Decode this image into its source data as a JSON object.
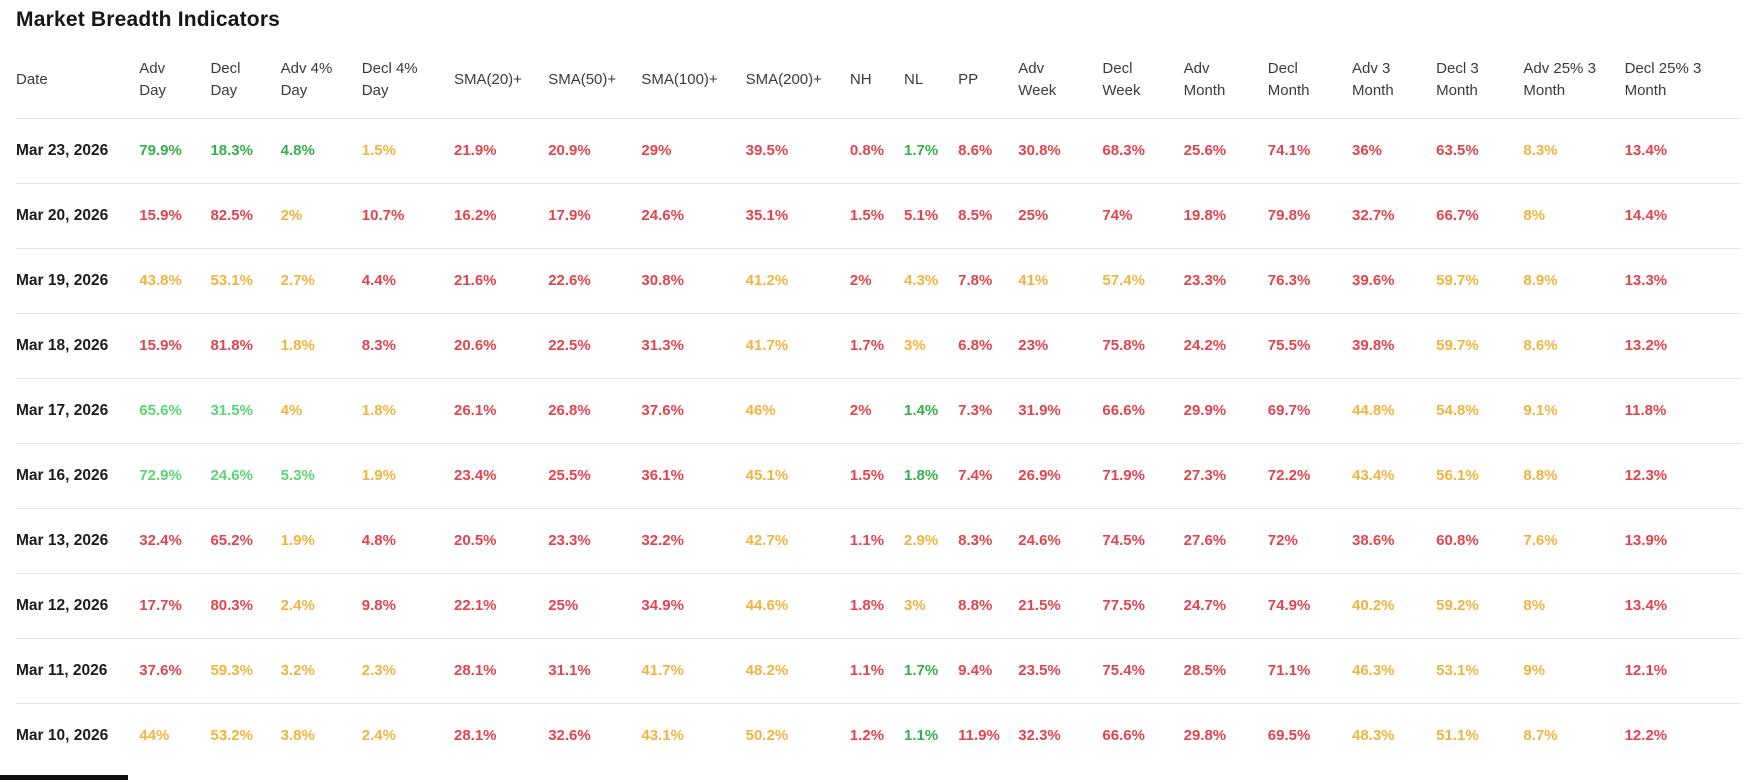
{
  "page": {
    "title": "Market Breadth Indicators"
  },
  "colors": {
    "green": "#33b04a",
    "light_green": "#5ad573",
    "yellow": "#f0b43e",
    "red": "#e2444d",
    "date_text": "#1b1b1b",
    "header_text": "#3a3a3a",
    "divider": "#e4e4e4"
  },
  "table": {
    "columns": [
      {
        "id": "date",
        "label": [
          "Date"
        ]
      },
      {
        "id": "adv-day",
        "label": [
          "Adv",
          "Day"
        ]
      },
      {
        "id": "decl-day",
        "label": [
          "Decl",
          "Day"
        ]
      },
      {
        "id": "adv-4pct-day",
        "label": [
          "Adv 4%",
          "Day"
        ]
      },
      {
        "id": "decl-4pct-day",
        "label": [
          "Decl 4%",
          "Day"
        ]
      },
      {
        "id": "sma-20",
        "label": [
          "SMA(20)+"
        ]
      },
      {
        "id": "sma-50",
        "label": [
          "SMA(50)+"
        ]
      },
      {
        "id": "sma-100",
        "label": [
          "SMA(100)+"
        ]
      },
      {
        "id": "sma-200",
        "label": [
          "SMA(200)+"
        ]
      },
      {
        "id": "nh",
        "label": [
          "NH"
        ]
      },
      {
        "id": "nl",
        "label": [
          "NL"
        ]
      },
      {
        "id": "pp",
        "label": [
          "PP"
        ]
      },
      {
        "id": "adv-week",
        "label": [
          "Adv",
          "Week"
        ]
      },
      {
        "id": "decl-week",
        "label": [
          "Decl",
          "Week"
        ]
      },
      {
        "id": "adv-month",
        "label": [
          "Adv",
          "Month"
        ]
      },
      {
        "id": "decl-month",
        "label": [
          "Decl",
          "Month"
        ]
      },
      {
        "id": "adv-3-month",
        "label": [
          "Adv 3",
          "Month"
        ]
      },
      {
        "id": "decl-3-month",
        "label": [
          "Decl 3",
          "Month"
        ]
      },
      {
        "id": "adv-25-3-month",
        "label": [
          "Adv 25% 3",
          "Month"
        ]
      },
      {
        "id": "decl-25-3-month",
        "label": [
          "Decl 25% 3",
          "Month"
        ]
      }
    ],
    "rows": [
      {
        "date": "Mar 23, 2026",
        "cells": [
          {
            "t": "79.9%",
            "c": "green"
          },
          {
            "t": "18.3%",
            "c": "green"
          },
          {
            "t": "4.8%",
            "c": "green"
          },
          {
            "t": "1.5%",
            "c": "yellow"
          },
          {
            "t": "21.9%",
            "c": "red"
          },
          {
            "t": "20.9%",
            "c": "red"
          },
          {
            "t": "29%",
            "c": "red"
          },
          {
            "t": "39.5%",
            "c": "red"
          },
          {
            "t": "0.8%",
            "c": "red"
          },
          {
            "t": "1.7%",
            "c": "green"
          },
          {
            "t": "8.6%",
            "c": "red"
          },
          {
            "t": "30.8%",
            "c": "red"
          },
          {
            "t": "68.3%",
            "c": "red"
          },
          {
            "t": "25.6%",
            "c": "red"
          },
          {
            "t": "74.1%",
            "c": "red"
          },
          {
            "t": "36%",
            "c": "red"
          },
          {
            "t": "63.5%",
            "c": "red"
          },
          {
            "t": "8.3%",
            "c": "yellow"
          },
          {
            "t": "13.4%",
            "c": "red"
          }
        ]
      },
      {
        "date": "Mar 20, 2026",
        "cells": [
          {
            "t": "15.9%",
            "c": "red"
          },
          {
            "t": "82.5%",
            "c": "red"
          },
          {
            "t": "2%",
            "c": "yellow"
          },
          {
            "t": "10.7%",
            "c": "red"
          },
          {
            "t": "16.2%",
            "c": "red"
          },
          {
            "t": "17.9%",
            "c": "red"
          },
          {
            "t": "24.6%",
            "c": "red"
          },
          {
            "t": "35.1%",
            "c": "red"
          },
          {
            "t": "1.5%",
            "c": "red"
          },
          {
            "t": "5.1%",
            "c": "red"
          },
          {
            "t": "8.5%",
            "c": "red"
          },
          {
            "t": "25%",
            "c": "red"
          },
          {
            "t": "74%",
            "c": "red"
          },
          {
            "t": "19.8%",
            "c": "red"
          },
          {
            "t": "79.8%",
            "c": "red"
          },
          {
            "t": "32.7%",
            "c": "red"
          },
          {
            "t": "66.7%",
            "c": "red"
          },
          {
            "t": "8%",
            "c": "yellow"
          },
          {
            "t": "14.4%",
            "c": "red"
          }
        ]
      },
      {
        "date": "Mar 19, 2026",
        "cells": [
          {
            "t": "43.8%",
            "c": "yellow"
          },
          {
            "t": "53.1%",
            "c": "yellow"
          },
          {
            "t": "2.7%",
            "c": "yellow"
          },
          {
            "t": "4.4%",
            "c": "red"
          },
          {
            "t": "21.6%",
            "c": "red"
          },
          {
            "t": "22.6%",
            "c": "red"
          },
          {
            "t": "30.8%",
            "c": "red"
          },
          {
            "t": "41.2%",
            "c": "yellow"
          },
          {
            "t": "2%",
            "c": "red"
          },
          {
            "t": "4.3%",
            "c": "yellow"
          },
          {
            "t": "7.8%",
            "c": "red"
          },
          {
            "t": "41%",
            "c": "yellow"
          },
          {
            "t": "57.4%",
            "c": "yellow"
          },
          {
            "t": "23.3%",
            "c": "red"
          },
          {
            "t": "76.3%",
            "c": "red"
          },
          {
            "t": "39.6%",
            "c": "red"
          },
          {
            "t": "59.7%",
            "c": "yellow"
          },
          {
            "t": "8.9%",
            "c": "yellow"
          },
          {
            "t": "13.3%",
            "c": "red"
          }
        ]
      },
      {
        "date": "Mar 18, 2026",
        "cells": [
          {
            "t": "15.9%",
            "c": "red"
          },
          {
            "t": "81.8%",
            "c": "red"
          },
          {
            "t": "1.8%",
            "c": "yellow"
          },
          {
            "t": "8.3%",
            "c": "red"
          },
          {
            "t": "20.6%",
            "c": "red"
          },
          {
            "t": "22.5%",
            "c": "red"
          },
          {
            "t": "31.3%",
            "c": "red"
          },
          {
            "t": "41.7%",
            "c": "yellow"
          },
          {
            "t": "1.7%",
            "c": "red"
          },
          {
            "t": "3%",
            "c": "yellow"
          },
          {
            "t": "6.8%",
            "c": "red"
          },
          {
            "t": "23%",
            "c": "red"
          },
          {
            "t": "75.8%",
            "c": "red"
          },
          {
            "t": "24.2%",
            "c": "red"
          },
          {
            "t": "75.5%",
            "c": "red"
          },
          {
            "t": "39.8%",
            "c": "red"
          },
          {
            "t": "59.7%",
            "c": "yellow"
          },
          {
            "t": "8.6%",
            "c": "yellow"
          },
          {
            "t": "13.2%",
            "c": "red"
          }
        ]
      },
      {
        "date": "Mar 17, 2026",
        "cells": [
          {
            "t": "65.6%",
            "c": "light_green"
          },
          {
            "t": "31.5%",
            "c": "light_green"
          },
          {
            "t": "4%",
            "c": "yellow"
          },
          {
            "t": "1.8%",
            "c": "yellow"
          },
          {
            "t": "26.1%",
            "c": "red"
          },
          {
            "t": "26.8%",
            "c": "red"
          },
          {
            "t": "37.6%",
            "c": "red"
          },
          {
            "t": "46%",
            "c": "yellow"
          },
          {
            "t": "2%",
            "c": "red"
          },
          {
            "t": "1.4%",
            "c": "green"
          },
          {
            "t": "7.3%",
            "c": "red"
          },
          {
            "t": "31.9%",
            "c": "red"
          },
          {
            "t": "66.6%",
            "c": "red"
          },
          {
            "t": "29.9%",
            "c": "red"
          },
          {
            "t": "69.7%",
            "c": "red"
          },
          {
            "t": "44.8%",
            "c": "yellow"
          },
          {
            "t": "54.8%",
            "c": "yellow"
          },
          {
            "t": "9.1%",
            "c": "yellow"
          },
          {
            "t": "11.8%",
            "c": "red"
          }
        ]
      },
      {
        "date": "Mar 16, 2026",
        "cells": [
          {
            "t": "72.9%",
            "c": "light_green"
          },
          {
            "t": "24.6%",
            "c": "light_green"
          },
          {
            "t": "5.3%",
            "c": "light_green"
          },
          {
            "t": "1.9%",
            "c": "yellow"
          },
          {
            "t": "23.4%",
            "c": "red"
          },
          {
            "t": "25.5%",
            "c": "red"
          },
          {
            "t": "36.1%",
            "c": "red"
          },
          {
            "t": "45.1%",
            "c": "yellow"
          },
          {
            "t": "1.5%",
            "c": "red"
          },
          {
            "t": "1.8%",
            "c": "green"
          },
          {
            "t": "7.4%",
            "c": "red"
          },
          {
            "t": "26.9%",
            "c": "red"
          },
          {
            "t": "71.9%",
            "c": "red"
          },
          {
            "t": "27.3%",
            "c": "red"
          },
          {
            "t": "72.2%",
            "c": "red"
          },
          {
            "t": "43.4%",
            "c": "yellow"
          },
          {
            "t": "56.1%",
            "c": "yellow"
          },
          {
            "t": "8.8%",
            "c": "yellow"
          },
          {
            "t": "12.3%",
            "c": "red"
          }
        ]
      },
      {
        "date": "Mar 13, 2026",
        "cells": [
          {
            "t": "32.4%",
            "c": "red"
          },
          {
            "t": "65.2%",
            "c": "red"
          },
          {
            "t": "1.9%",
            "c": "yellow"
          },
          {
            "t": "4.8%",
            "c": "red"
          },
          {
            "t": "20.5%",
            "c": "red"
          },
          {
            "t": "23.3%",
            "c": "red"
          },
          {
            "t": "32.2%",
            "c": "red"
          },
          {
            "t": "42.7%",
            "c": "yellow"
          },
          {
            "t": "1.1%",
            "c": "red"
          },
          {
            "t": "2.9%",
            "c": "yellow"
          },
          {
            "t": "8.3%",
            "c": "red"
          },
          {
            "t": "24.6%",
            "c": "red"
          },
          {
            "t": "74.5%",
            "c": "red"
          },
          {
            "t": "27.6%",
            "c": "red"
          },
          {
            "t": "72%",
            "c": "red"
          },
          {
            "t": "38.6%",
            "c": "red"
          },
          {
            "t": "60.8%",
            "c": "red"
          },
          {
            "t": "7.6%",
            "c": "yellow"
          },
          {
            "t": "13.9%",
            "c": "red"
          }
        ]
      },
      {
        "date": "Mar 12, 2026",
        "cells": [
          {
            "t": "17.7%",
            "c": "red"
          },
          {
            "t": "80.3%",
            "c": "red"
          },
          {
            "t": "2.4%",
            "c": "yellow"
          },
          {
            "t": "9.8%",
            "c": "red"
          },
          {
            "t": "22.1%",
            "c": "red"
          },
          {
            "t": "25%",
            "c": "red"
          },
          {
            "t": "34.9%",
            "c": "red"
          },
          {
            "t": "44.6%",
            "c": "yellow"
          },
          {
            "t": "1.8%",
            "c": "red"
          },
          {
            "t": "3%",
            "c": "yellow"
          },
          {
            "t": "8.8%",
            "c": "red"
          },
          {
            "t": "21.5%",
            "c": "red"
          },
          {
            "t": "77.5%",
            "c": "red"
          },
          {
            "t": "24.7%",
            "c": "red"
          },
          {
            "t": "74.9%",
            "c": "red"
          },
          {
            "t": "40.2%",
            "c": "yellow"
          },
          {
            "t": "59.2%",
            "c": "yellow"
          },
          {
            "t": "8%",
            "c": "yellow"
          },
          {
            "t": "13.4%",
            "c": "red"
          }
        ]
      },
      {
        "date": "Mar 11, 2026",
        "cells": [
          {
            "t": "37.6%",
            "c": "red"
          },
          {
            "t": "59.3%",
            "c": "yellow"
          },
          {
            "t": "3.2%",
            "c": "yellow"
          },
          {
            "t": "2.3%",
            "c": "yellow"
          },
          {
            "t": "28.1%",
            "c": "red"
          },
          {
            "t": "31.1%",
            "c": "red"
          },
          {
            "t": "41.7%",
            "c": "yellow"
          },
          {
            "t": "48.2%",
            "c": "yellow"
          },
          {
            "t": "1.1%",
            "c": "red"
          },
          {
            "t": "1.7%",
            "c": "green"
          },
          {
            "t": "9.4%",
            "c": "red"
          },
          {
            "t": "23.5%",
            "c": "red"
          },
          {
            "t": "75.4%",
            "c": "red"
          },
          {
            "t": "28.5%",
            "c": "red"
          },
          {
            "t": "71.1%",
            "c": "red"
          },
          {
            "t": "46.3%",
            "c": "yellow"
          },
          {
            "t": "53.1%",
            "c": "yellow"
          },
          {
            "t": "9%",
            "c": "yellow"
          },
          {
            "t": "12.1%",
            "c": "red"
          }
        ]
      },
      {
        "date": "Mar 10, 2026",
        "cells": [
          {
            "t": "44%",
            "c": "yellow"
          },
          {
            "t": "53.2%",
            "c": "yellow"
          },
          {
            "t": "3.8%",
            "c": "yellow"
          },
          {
            "t": "2.4%",
            "c": "yellow"
          },
          {
            "t": "28.1%",
            "c": "red"
          },
          {
            "t": "32.6%",
            "c": "red"
          },
          {
            "t": "43.1%",
            "c": "yellow"
          },
          {
            "t": "50.2%",
            "c": "yellow"
          },
          {
            "t": "1.2%",
            "c": "red"
          },
          {
            "t": "1.1%",
            "c": "green"
          },
          {
            "t": "11.9%",
            "c": "red"
          },
          {
            "t": "32.3%",
            "c": "red"
          },
          {
            "t": "66.6%",
            "c": "red"
          },
          {
            "t": "29.8%",
            "c": "red"
          },
          {
            "t": "69.5%",
            "c": "red"
          },
          {
            "t": "48.3%",
            "c": "yellow"
          },
          {
            "t": "51.1%",
            "c": "yellow"
          },
          {
            "t": "8.7%",
            "c": "yellow"
          },
          {
            "t": "12.2%",
            "c": "red"
          }
        ]
      }
    ]
  }
}
